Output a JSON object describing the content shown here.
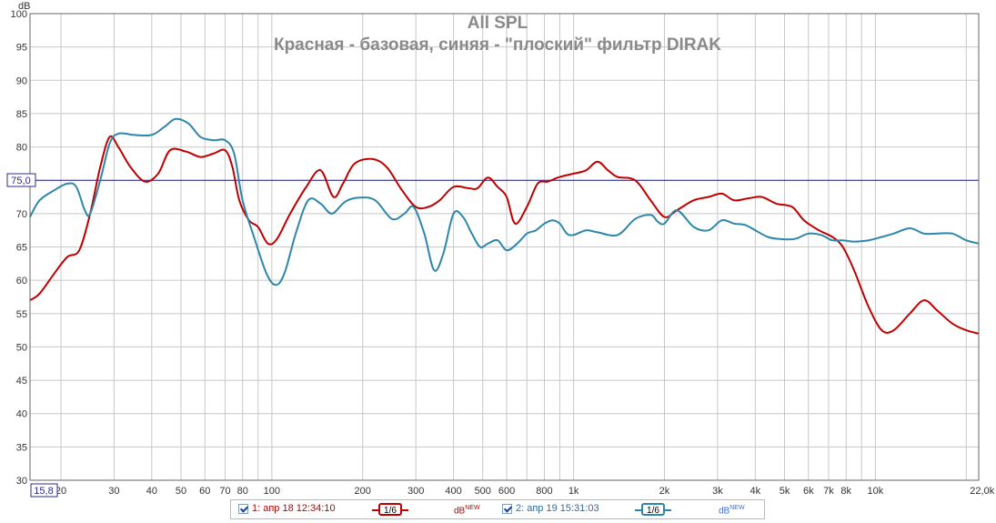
{
  "chart_data": {
    "type": "line",
    "title": "All SPL",
    "subtitle": "Красная - базовая, синяя - \"плоский\" фильтр DIRAK",
    "ylabel": "dB",
    "xlabel": "Hz",
    "ylim": [
      30,
      100
    ],
    "xlim": [
      15.8,
      22000
    ],
    "x_scale": "log",
    "grid": true,
    "y_ticks": [
      30,
      35,
      40,
      45,
      50,
      55,
      60,
      65,
      70,
      75,
      80,
      85,
      90,
      95,
      100
    ],
    "x_ticks": [
      {
        "value": 15.8,
        "label": "15,8"
      },
      {
        "value": 20,
        "label": "20"
      },
      {
        "value": 30,
        "label": "30"
      },
      {
        "value": 40,
        "label": "40"
      },
      {
        "value": 50,
        "label": "50"
      },
      {
        "value": 60,
        "label": "60"
      },
      {
        "value": 70,
        "label": "70"
      },
      {
        "value": 80,
        "label": "80"
      },
      {
        "value": 100,
        "label": "100"
      },
      {
        "value": 200,
        "label": "200"
      },
      {
        "value": 300,
        "label": "300"
      },
      {
        "value": 400,
        "label": "400"
      },
      {
        "value": 500,
        "label": "500"
      },
      {
        "value": 600,
        "label": "600"
      },
      {
        "value": 800,
        "label": "800"
      },
      {
        "value": 1000,
        "label": "1k"
      },
      {
        "value": 2000,
        "label": "2k"
      },
      {
        "value": 3000,
        "label": "3k"
      },
      {
        "value": 4000,
        "label": "4k"
      },
      {
        "value": 5000,
        "label": "5k"
      },
      {
        "value": 6000,
        "label": "6k"
      },
      {
        "value": 7000,
        "label": "7k"
      },
      {
        "value": 8000,
        "label": "8k"
      },
      {
        "value": 10000,
        "label": "10k"
      },
      {
        "value": 22000,
        "label": "22,0k Hz"
      }
    ],
    "reference_line": {
      "value": 75.0,
      "label": "75,0"
    },
    "x_start_label": "15,8",
    "series": [
      {
        "name": "1: апр 18 12:34:10",
        "color": "#c00000",
        "points": [
          [
            15.8,
            57
          ],
          [
            17,
            58
          ],
          [
            19,
            61
          ],
          [
            21,
            63.5
          ],
          [
            23,
            64.5
          ],
          [
            25,
            70
          ],
          [
            27,
            77
          ],
          [
            29,
            81.5
          ],
          [
            31,
            80
          ],
          [
            34,
            77
          ],
          [
            38,
            74.8
          ],
          [
            42,
            76
          ],
          [
            46,
            79.5
          ],
          [
            52,
            79.3
          ],
          [
            58,
            78.5
          ],
          [
            64,
            79
          ],
          [
            70,
            79.5
          ],
          [
            74,
            77
          ],
          [
            78,
            72
          ],
          [
            84,
            69
          ],
          [
            90,
            68
          ],
          [
            97,
            65.5
          ],
          [
            104,
            66.2
          ],
          [
            115,
            70
          ],
          [
            130,
            74
          ],
          [
            145,
            76.5
          ],
          [
            160,
            72.5
          ],
          [
            172,
            74.5
          ],
          [
            188,
            77.5
          ],
          [
            215,
            78.2
          ],
          [
            240,
            77
          ],
          [
            270,
            73.5
          ],
          [
            300,
            71
          ],
          [
            330,
            71
          ],
          [
            360,
            72
          ],
          [
            400,
            74
          ],
          [
            450,
            73.8
          ],
          [
            480,
            73.8
          ],
          [
            520,
            75.4
          ],
          [
            560,
            74
          ],
          [
            600,
            72.5
          ],
          [
            640,
            68.5
          ],
          [
            700,
            71
          ],
          [
            760,
            74.5
          ],
          [
            820,
            74.8
          ],
          [
            900,
            75.5
          ],
          [
            1000,
            76
          ],
          [
            1100,
            76.5
          ],
          [
            1200,
            77.8
          ],
          [
            1300,
            76.5
          ],
          [
            1400,
            75.5
          ],
          [
            1600,
            75
          ],
          [
            1800,
            72
          ],
          [
            2000,
            69.5
          ],
          [
            2200,
            70.5
          ],
          [
            2500,
            72
          ],
          [
            2800,
            72.5
          ],
          [
            3100,
            73
          ],
          [
            3400,
            72
          ],
          [
            3800,
            72.3
          ],
          [
            4200,
            72.5
          ],
          [
            4700,
            71.5
          ],
          [
            5300,
            71
          ],
          [
            5800,
            69
          ],
          [
            6500,
            67.5
          ],
          [
            7200,
            66.5
          ],
          [
            7800,
            65
          ],
          [
            8500,
            61.5
          ],
          [
            9500,
            56
          ],
          [
            10500,
            52.5
          ],
          [
            11500,
            52.5
          ],
          [
            13000,
            55
          ],
          [
            14500,
            57
          ],
          [
            16000,
            55.5
          ],
          [
            18000,
            53.5
          ],
          [
            20000,
            52.5
          ],
          [
            22000,
            52
          ]
        ]
      },
      {
        "name": "2: апр 19 15:31:03",
        "color": "#2e86ab",
        "points": [
          [
            15.8,
            69.5
          ],
          [
            17,
            72
          ],
          [
            19,
            73.5
          ],
          [
            21,
            74.5
          ],
          [
            22.5,
            74
          ],
          [
            24,
            70.5
          ],
          [
            25,
            70
          ],
          [
            27,
            75
          ],
          [
            29,
            80.5
          ],
          [
            31,
            82
          ],
          [
            35,
            81.8
          ],
          [
            40,
            81.8
          ],
          [
            44,
            83
          ],
          [
            48,
            84.2
          ],
          [
            53,
            83.5
          ],
          [
            58,
            81.5
          ],
          [
            64,
            81
          ],
          [
            70,
            81
          ],
          [
            75,
            79
          ],
          [
            80,
            72
          ],
          [
            88,
            66
          ],
          [
            96,
            61
          ],
          [
            103,
            59.3
          ],
          [
            110,
            61
          ],
          [
            120,
            67
          ],
          [
            132,
            72
          ],
          [
            145,
            71.5
          ],
          [
            158,
            70
          ],
          [
            175,
            71.8
          ],
          [
            195,
            72.4
          ],
          [
            220,
            72
          ],
          [
            250,
            69.2
          ],
          [
            275,
            70
          ],
          [
            295,
            71
          ],
          [
            320,
            67
          ],
          [
            345,
            61.5
          ],
          [
            370,
            64
          ],
          [
            400,
            70
          ],
          [
            430,
            69.5
          ],
          [
            460,
            67
          ],
          [
            490,
            65
          ],
          [
            520,
            65.5
          ],
          [
            560,
            66
          ],
          [
            600,
            64.5
          ],
          [
            650,
            65.5
          ],
          [
            700,
            67
          ],
          [
            750,
            67.5
          ],
          [
            800,
            68.5
          ],
          [
            850,
            69
          ],
          [
            900,
            68.5
          ],
          [
            950,
            67
          ],
          [
            1000,
            66.8
          ],
          [
            1100,
            67.5
          ],
          [
            1200,
            67.2
          ],
          [
            1400,
            66.8
          ],
          [
            1600,
            69.2
          ],
          [
            1800,
            69.8
          ],
          [
            1900,
            68.8
          ],
          [
            2000,
            68.5
          ],
          [
            2200,
            70.5
          ],
          [
            2500,
            68
          ],
          [
            2800,
            67.5
          ],
          [
            3100,
            69
          ],
          [
            3400,
            68.5
          ],
          [
            3700,
            68.3
          ],
          [
            4000,
            67.5
          ],
          [
            4400,
            66.5
          ],
          [
            4800,
            66.2
          ],
          [
            5400,
            66.2
          ],
          [
            6000,
            67
          ],
          [
            6600,
            66.8
          ],
          [
            7200,
            66
          ],
          [
            7800,
            66
          ],
          [
            8500,
            65.8
          ],
          [
            9500,
            66
          ],
          [
            10500,
            66.5
          ],
          [
            11500,
            67
          ],
          [
            13000,
            67.8
          ],
          [
            14500,
            67
          ],
          [
            16000,
            67
          ],
          [
            18000,
            67
          ],
          [
            20000,
            66
          ],
          [
            22000,
            65.5
          ]
        ]
      }
    ]
  },
  "legend": {
    "item1": {
      "label": "1: апр 18 12:34:10",
      "smoothing": "1/6",
      "units": "dB",
      "units_sup": "NEW",
      "color": "#c00000"
    },
    "item2": {
      "label": "2: апр 19 15:31:03",
      "smoothing": "1/6",
      "units": "dB",
      "units_sup": "NEW",
      "color": "#2e86ab"
    }
  }
}
